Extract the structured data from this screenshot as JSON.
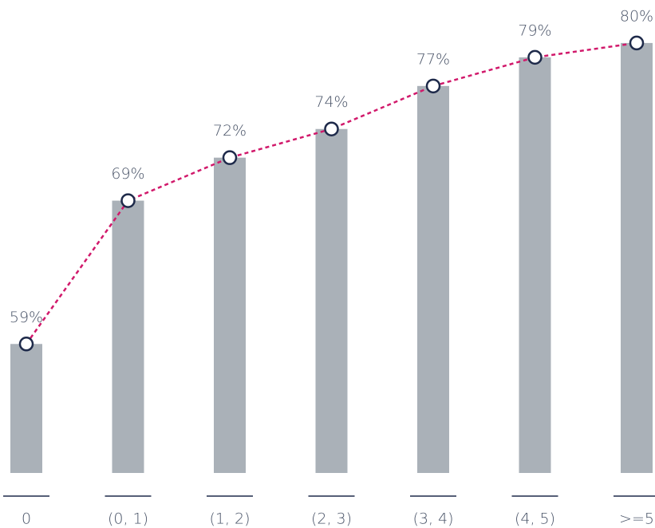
{
  "chart_data": {
    "type": "bar",
    "categories": [
      "0",
      "(0, 1)",
      "(1, 2)",
      "(2, 3)",
      "(3, 4)",
      "(4, 5)",
      ">=5"
    ],
    "values": [
      59,
      69,
      72,
      74,
      77,
      79,
      80
    ],
    "value_labels": [
      "59%",
      "69%",
      "72%",
      "74%",
      "77%",
      "79%",
      "80%"
    ],
    "color": "#aab1b8",
    "line_color": "#d1196b",
    "ylim": [
      50,
      83
    ]
  }
}
